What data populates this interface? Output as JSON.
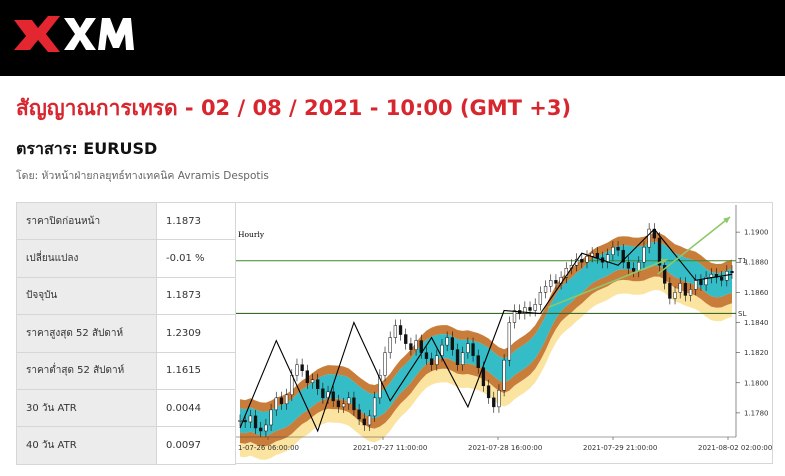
{
  "header": {
    "brand": "XM"
  },
  "signal": {
    "title": "สัญญาณการเทรด - 02 / 08 / 2021 - 10:00 (GMT +3)",
    "instrument": "ตราสาร: EURUSD",
    "byline": "โดย: หัวหน้าฝ่ายกลยุทธ์ทางเทคนิค Avramis Despotis"
  },
  "stats": [
    {
      "label": "ราคาปิดก่อนหน้า",
      "value": "1.1873"
    },
    {
      "label": "เปลี่ยนแปลง",
      "value": "-0.01 %"
    },
    {
      "label": "ปัจจุบัน",
      "value": "1.1873"
    },
    {
      "label": "ราคาสูงสุด 52 สัปดาห์",
      "value": "1.2309"
    },
    {
      "label": "ราคาต่ำสุด 52 สัปดาห์",
      "value": "1.1615"
    },
    {
      "label": "30 วัน ATR",
      "value": "0.0044"
    },
    {
      "label": "40 วัน ATR",
      "value": "0.0097"
    }
  ],
  "chart_data": {
    "type": "candlestick",
    "timeframe": "Hourly",
    "x_tick_labels": [
      "1-07-26 06:00:00",
      "2021-07-27 11:00:00",
      "2021-07-28 16:00:00",
      "2021-07-29 21:00:00",
      "2021-08-02 02:00:00"
    ],
    "y_tick_labels": [
      "1.1900",
      "1.1880",
      "1.1860",
      "1.1840",
      "1.1820",
      "1.1800",
      "1.1780"
    ],
    "ylim": [
      1.1764,
      1.1918
    ],
    "levels": [
      {
        "label": "T1",
        "value": 1.1881,
        "color": "#3a8a2a"
      },
      {
        "label": "SL",
        "value": 1.1846,
        "color": "#3a6a2a"
      }
    ],
    "close_series": [
      1.1775,
      1.1774,
      1.1778,
      1.177,
      1.1768,
      1.1772,
      1.1782,
      1.179,
      1.1786,
      1.1792,
      1.1805,
      1.1812,
      1.1808,
      1.18,
      1.1802,
      1.1796,
      1.179,
      1.1794,
      1.1788,
      1.1784,
      1.1786,
      1.179,
      1.1782,
      1.1776,
      1.1772,
      1.1778,
      1.179,
      1.1805,
      1.182,
      1.183,
      1.1838,
      1.1832,
      1.1826,
      1.1822,
      1.1828,
      1.182,
      1.1816,
      1.1812,
      1.1818,
      1.1825,
      1.183,
      1.1822,
      1.1812,
      1.182,
      1.1826,
      1.1818,
      1.181,
      1.1798,
      1.179,
      1.1784,
      1.1795,
      1.1815,
      1.184,
      1.1848,
      1.1846,
      1.185,
      1.1848,
      1.1852,
      1.186,
      1.1864,
      1.1868,
      1.1866,
      1.187,
      1.1876,
      1.1878,
      1.1882,
      1.188,
      1.1884,
      1.1886,
      1.1883,
      1.188,
      1.1885,
      1.189,
      1.1888,
      1.188,
      1.1876,
      1.1874,
      1.188,
      1.189,
      1.1902,
      1.1896,
      1.1878,
      1.1866,
      1.1856,
      1.186,
      1.1866,
      1.1858,
      1.1862,
      1.1868,
      1.1865,
      1.187,
      1.1872,
      1.187,
      1.1868,
      1.1874,
      1.1873
    ],
    "zigzag": [
      1.177,
      1.1828,
      1.1768,
      1.184,
      1.1788,
      1.183,
      1.1784,
      1.1848,
      1.1846,
      1.1886,
      1.1878,
      1.1902,
      1.1868,
      1.1872
    ],
    "arrows": [
      {
        "from": 1.185,
        "to": 1.1882,
        "color": "#8ec869"
      },
      {
        "from": 1.1872,
        "to": 1.191,
        "color": "#8ec869"
      }
    ]
  }
}
